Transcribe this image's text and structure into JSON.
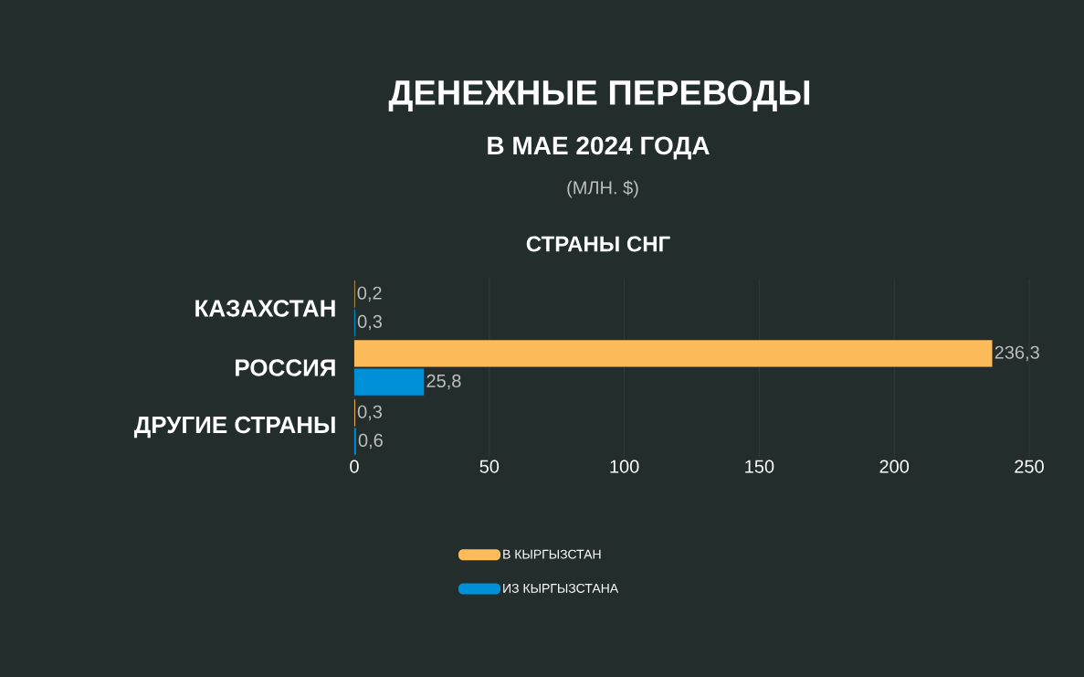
{
  "chart_data": {
    "type": "bar",
    "orientation": "horizontal",
    "title": "ДЕНЕЖНЫЕ ПЕРЕВОДЫ",
    "subtitle": "В МАЕ 2024 ГОДА",
    "annotations": [
      "(МЛН. $)",
      "СТРАНЫ СНГ"
    ],
    "categories": [
      "КАЗАХСТАН",
      "РОССИЯ",
      "ДРУГИЕ СТРАНЫ"
    ],
    "series": [
      {
        "name": "В КЫРГЫЗСТАН",
        "color": "#fdbb5a",
        "values": [
          0.2,
          236.3,
          0.3
        ],
        "value_labels": [
          "0,2",
          "236,3",
          "0,3"
        ]
      },
      {
        "name": "ИЗ КЫРГЫЗСТАНА",
        "color": "#0090d8",
        "values": [
          0.3,
          25.8,
          0.6
        ],
        "value_labels": [
          "0,3",
          "25,8",
          "0,6"
        ]
      }
    ],
    "xlim": [
      0,
      250
    ],
    "xticks": [
      0,
      50,
      100,
      150,
      200,
      250
    ],
    "grid": "x",
    "legend": "bottom"
  }
}
